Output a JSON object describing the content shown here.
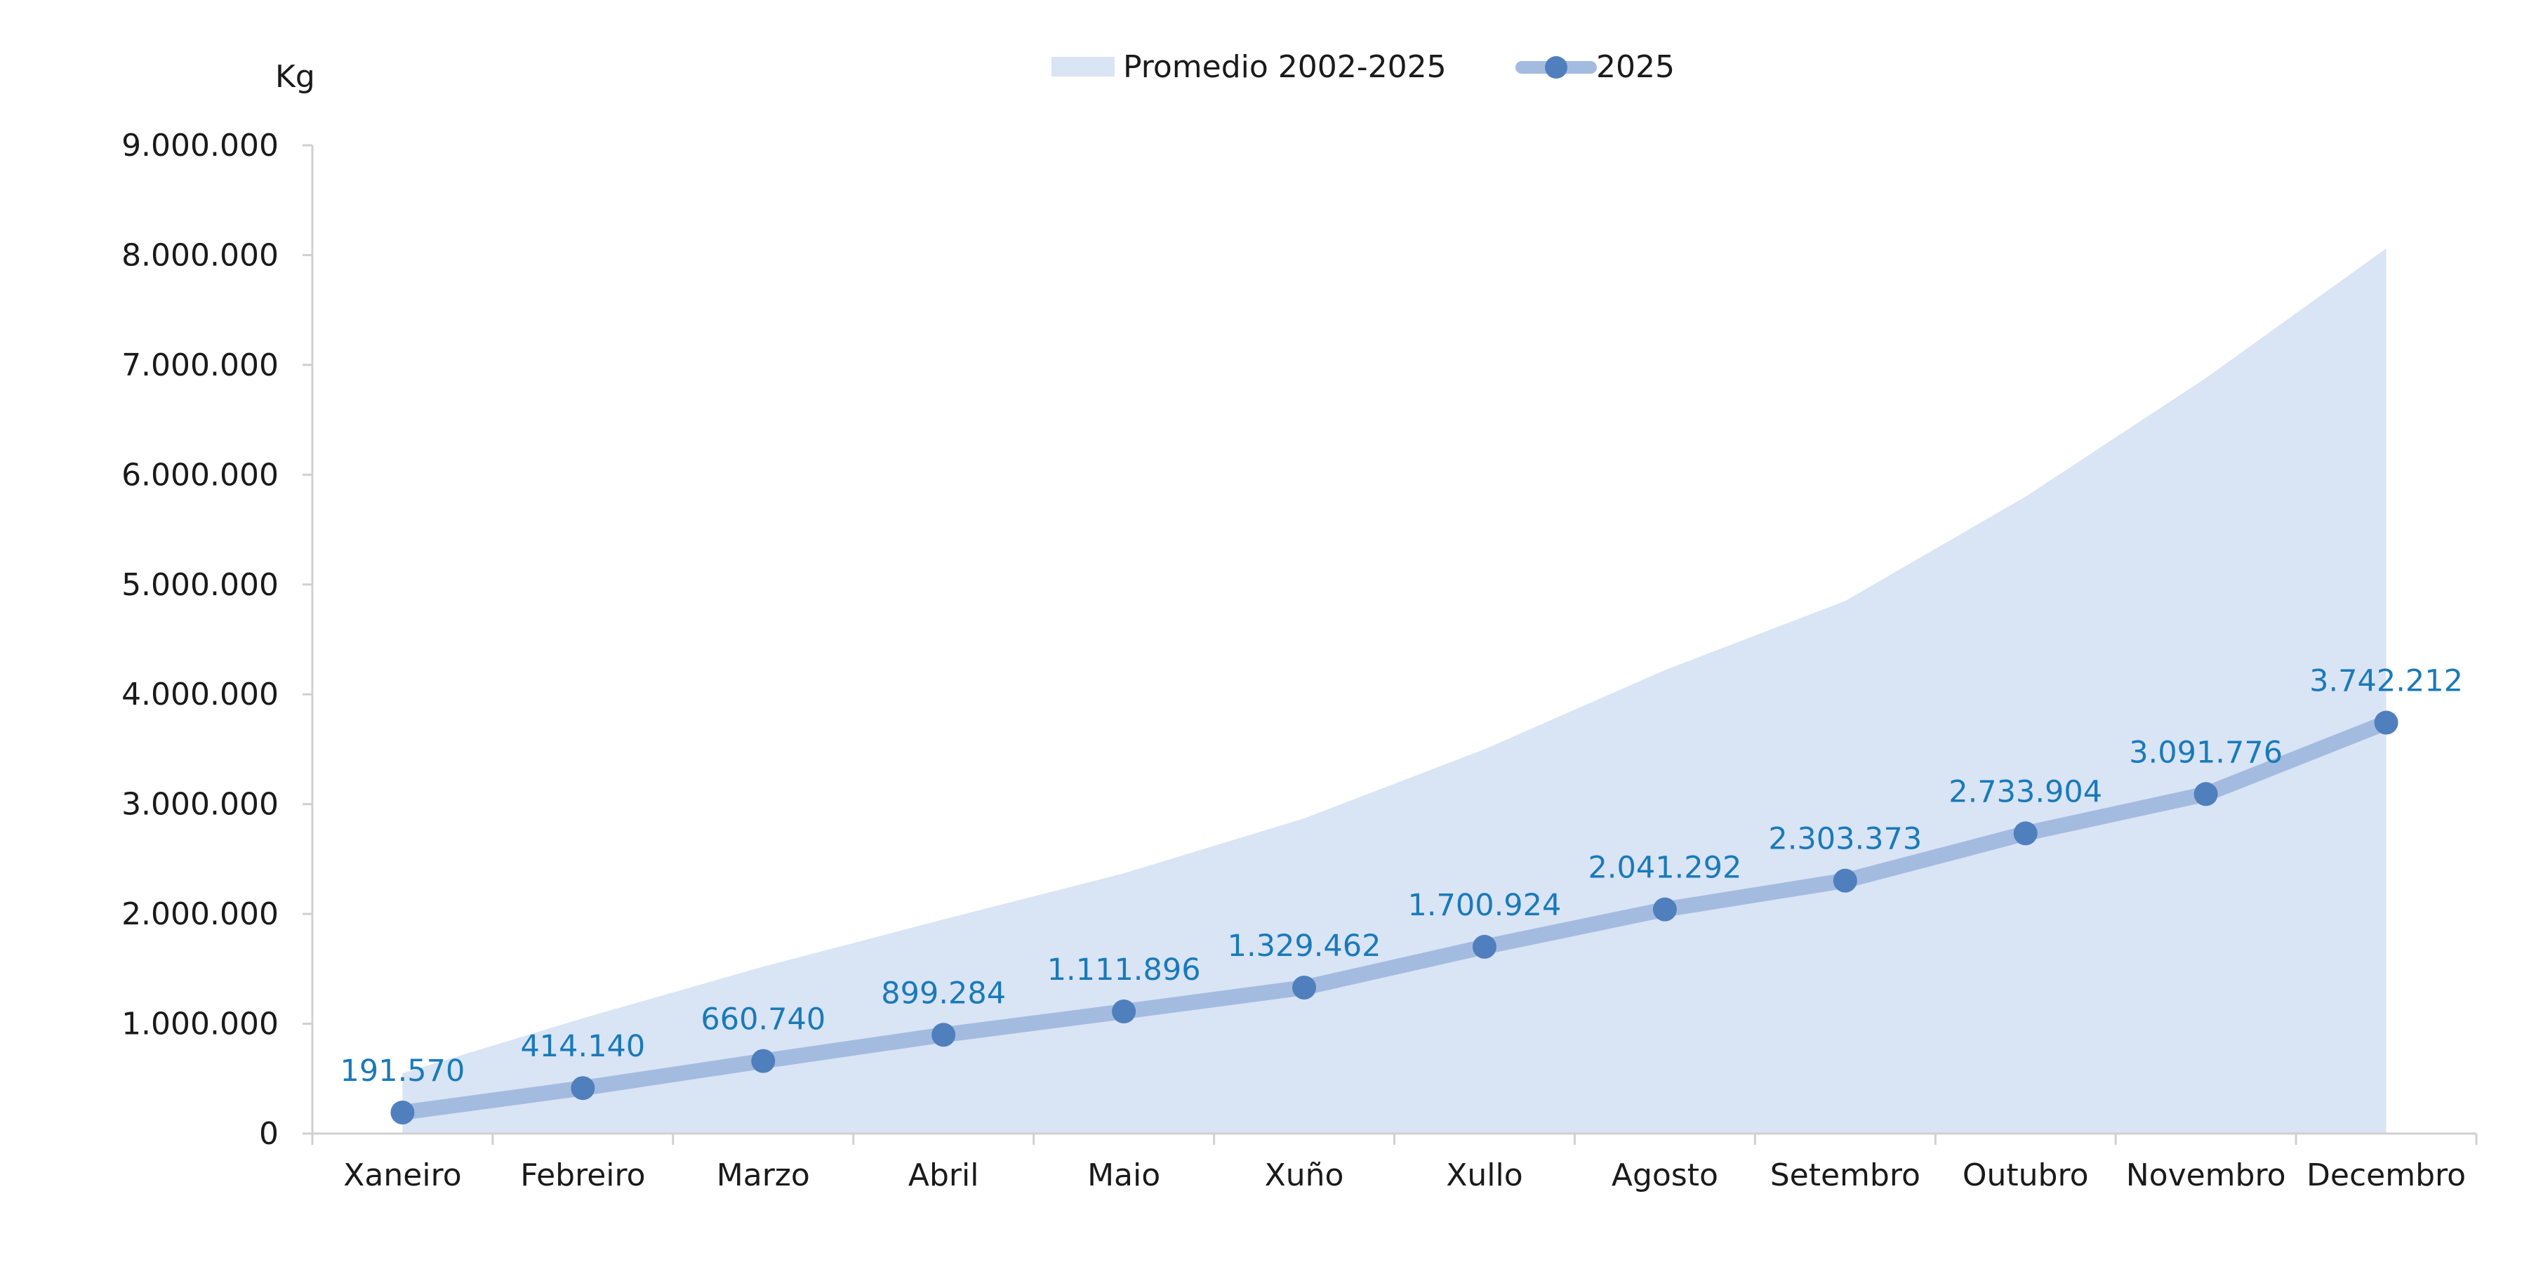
{
  "chart_data": {
    "type": "line",
    "ylabel": "Kg",
    "ylim": [
      0,
      9000000
    ],
    "y_ticks": [
      0,
      1000000,
      2000000,
      3000000,
      4000000,
      5000000,
      6000000,
      7000000,
      8000000,
      9000000
    ],
    "y_tick_labels": [
      "0",
      "1.000.000",
      "2.000.000",
      "3.000.000",
      "4.000.000",
      "5.000.000",
      "6.000.000",
      "7.000.000",
      "8.000.000",
      "9.000.000"
    ],
    "categories": [
      "Xaneiro",
      "Febreiro",
      "Marzo",
      "Abril",
      "Maio",
      "Xuño",
      "Xullo",
      "Agosto",
      "Setembro",
      "Outubro",
      "Novembro",
      "Decembro"
    ],
    "series": [
      {
        "name": "Promedio 2002-2025",
        "kind": "area",
        "color": "#d9e4f5",
        "values": [
          550000,
          1050000,
          1520000,
          1950000,
          2370000,
          2870000,
          3500000,
          4220000,
          4850000,
          5800000,
          6880000,
          8060000
        ]
      },
      {
        "name": "2025",
        "kind": "line",
        "line_color": "#a4bbe0",
        "marker_color": "#4f7fbd",
        "label_color": "#1a7ab8",
        "values": [
          191570,
          414140,
          660740,
          899284,
          1111896,
          1329462,
          1700924,
          2041292,
          2303373,
          2733904,
          3091776,
          3742212
        ],
        "data_labels": [
          "191.570",
          "414.140",
          "660.740",
          "899.284",
          "1.111.896",
          "1.329.462",
          "1.700.924",
          "2.041.292",
          "2.303.373",
          "2.733.904",
          "3.091.776",
          "3.742.212"
        ]
      }
    ],
    "legend_position": "top-center",
    "grid": false
  }
}
